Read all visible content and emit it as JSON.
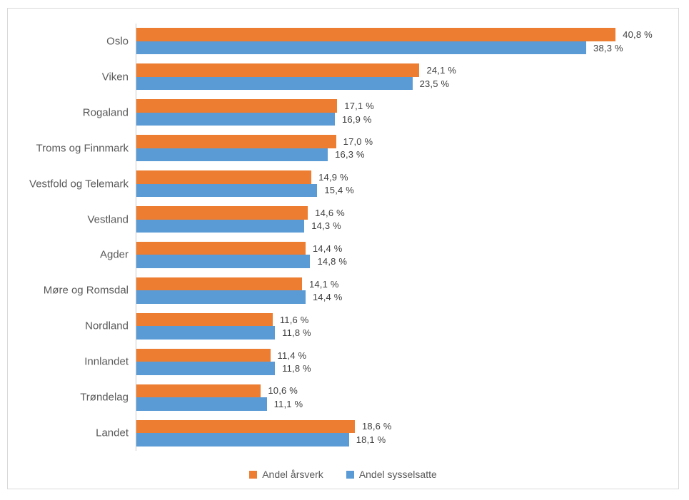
{
  "chart_data": {
    "type": "bar",
    "orientation": "horizontal",
    "title": "",
    "categories": [
      "Oslo",
      "Viken",
      "Rogaland",
      "Troms og Finnmark",
      "Vestfold og Telemark",
      "Vestland",
      "Agder",
      "Møre og Romsdal",
      "Nordland",
      "Innlandet",
      "Trøndelag",
      "Landet"
    ],
    "series": [
      {
        "name": "Andel årsverk",
        "color": "#ED7D31",
        "values": [
          40.8,
          24.1,
          17.1,
          17.0,
          14.9,
          14.6,
          14.4,
          14.1,
          11.6,
          11.4,
          10.6,
          18.6
        ],
        "labels": [
          "40,8 %",
          "24,1 %",
          "17,1 %",
          "17,0 %",
          "14,9 %",
          "14,6 %",
          "14,4 %",
          "14,1 %",
          "11,6 %",
          "11,4 %",
          "10,6 %",
          "18,6 %"
        ]
      },
      {
        "name": "Andel sysselsatte",
        "color": "#5B9BD5",
        "values": [
          38.3,
          23.5,
          16.9,
          16.3,
          15.4,
          14.3,
          14.8,
          14.4,
          11.8,
          11.8,
          11.1,
          18.1
        ],
        "labels": [
          "38,3 %",
          "23,5 %",
          "16,9 %",
          "16,3 %",
          "15,4 %",
          "14,3 %",
          "14,8 %",
          "14,4 %",
          "11,8 %",
          "11,8 %",
          "11,1 %",
          "18,1 %"
        ]
      }
    ],
    "xlim": [
      0,
      45
    ],
    "grid": false,
    "legend_position": "bottom",
    "axis_line_color": "#C9C9C9",
    "value_label_color": "#3F3F3F",
    "category_label_color": "#595959",
    "frame_border_color": "#D9D9D9"
  }
}
